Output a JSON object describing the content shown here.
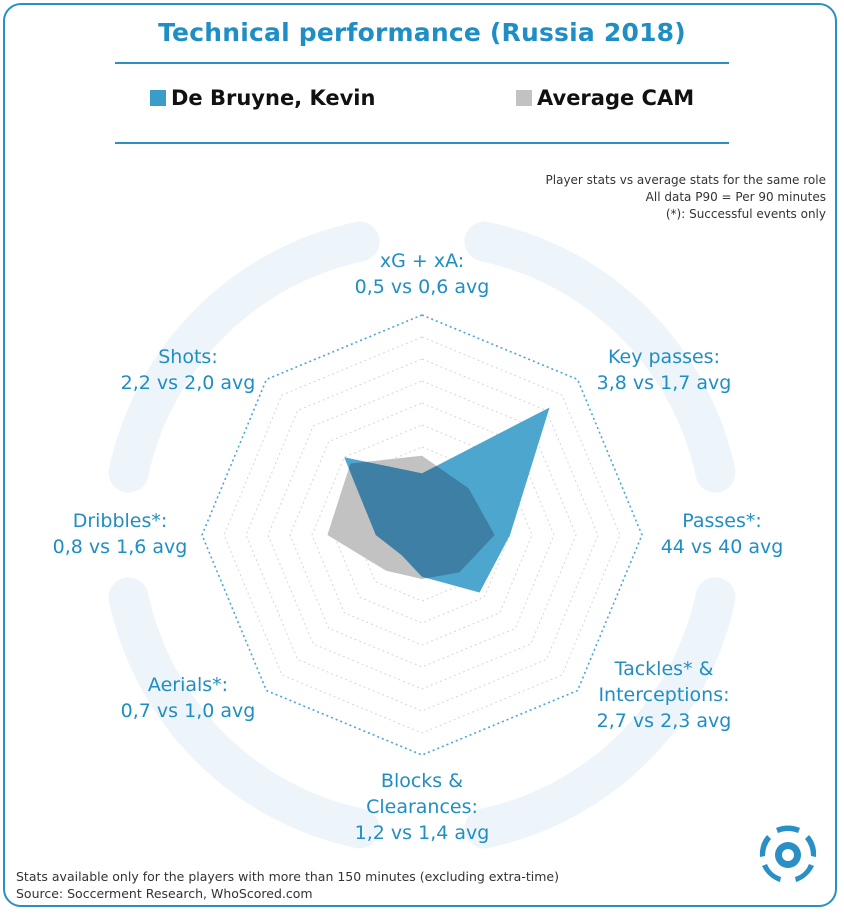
{
  "title": "Technical performance (Russia 2018)",
  "legend": {
    "player": "De Bruyne, Kevin",
    "average": "Average CAM"
  },
  "notes": [
    "Player stats vs average stats for the same role",
    "All data P90 = Per 90 minutes",
    "(*): Successful events only"
  ],
  "footer": [
    "Stats available only for the players with more than 150 minutes (excluding extra-time)",
    "Source: Soccerment Research, WhoScored.com"
  ],
  "colors": {
    "accent": "#1f8ec4",
    "player": "#3a9cc9",
    "average": "#c2c2c2",
    "overlap": "#3e7fa6"
  },
  "icons": [
    "soccerment-logo-icon"
  ],
  "chart_data": {
    "type": "radar",
    "axes": [
      {
        "name": "xG + xA:",
        "lines": [
          "xG + xA:"
        ],
        "stat": "0,5 vs 0,6 avg",
        "player": 0.5,
        "average": 0.6
      },
      {
        "name": "Key passes:",
        "lines": [
          "Key passes:"
        ],
        "stat": "3,8 vs 1,7 avg",
        "player": 3.8,
        "average": 1.7
      },
      {
        "name": "Passes*:",
        "lines": [
          "Passes*:"
        ],
        "stat": "44 vs 40 avg",
        "player": 44,
        "average": 40
      },
      {
        "name": "Tackles* & Interceptions:",
        "lines": [
          "Tackles* &",
          "Interceptions:"
        ],
        "stat": "2,7 vs 2,3 avg",
        "player": 2.7,
        "average": 2.3
      },
      {
        "name": "Blocks & Clearances:",
        "lines": [
          "Blocks &",
          "Clearances:"
        ],
        "stat": "1,2 vs 1,4 avg",
        "player": 1.2,
        "average": 1.4
      },
      {
        "name": "Aerials*:",
        "lines": [
          "Aerials*:"
        ],
        "stat": "0,7 vs 1,0 avg",
        "player": 0.7,
        "average": 1.0
      },
      {
        "name": "Dribbles*:",
        "lines": [
          "Dribbles*:"
        ],
        "stat": "0,8 vs 1,6 avg",
        "player": 0.8,
        "average": 1.6
      },
      {
        "name": "Shots:",
        "lines": [
          "Shots:"
        ],
        "stat": "2,2 vs 2,0 avg",
        "player": 2.2,
        "average": 2.0
      }
    ],
    "series": [
      {
        "name": "De Bruyne, Kevin",
        "normalized": [
          0.28,
          0.82,
          0.4,
          0.37,
          0.19,
          0.13,
          0.21,
          0.5
        ]
      },
      {
        "name": "Average CAM",
        "normalized": [
          0.36,
          0.3,
          0.33,
          0.24,
          0.2,
          0.23,
          0.43,
          0.46
        ]
      }
    ],
    "rings": 10,
    "range": [
      0,
      1
    ]
  }
}
